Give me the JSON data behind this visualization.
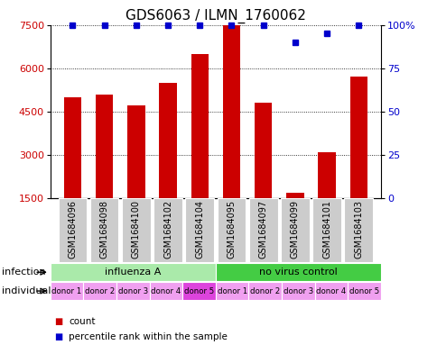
{
  "title": "GDS6063 / ILMN_1760062",
  "samples": [
    "GSM1684096",
    "GSM1684098",
    "GSM1684100",
    "GSM1684102",
    "GSM1684104",
    "GSM1684095",
    "GSM1684097",
    "GSM1684099",
    "GSM1684101",
    "GSM1684103"
  ],
  "counts": [
    5000,
    5100,
    4700,
    5500,
    6500,
    7500,
    4800,
    1700,
    3100,
    5700
  ],
  "percentiles": [
    100,
    100,
    100,
    100,
    100,
    100,
    100,
    90,
    95,
    100
  ],
  "ylim_left": [
    1500,
    7500
  ],
  "yticks_left": [
    1500,
    3000,
    4500,
    6000,
    7500
  ],
  "yticks_right": [
    0,
    25,
    50,
    75,
    100
  ],
  "ytick_labels_right": [
    "0",
    "25",
    "50",
    "75",
    "100%"
  ],
  "bar_color": "#cc0000",
  "dot_color": "#0000cc",
  "infection_groups": [
    {
      "label": "influenza A",
      "start": 0,
      "end": 5,
      "color": "#aaeaaa"
    },
    {
      "label": "no virus control",
      "start": 5,
      "end": 10,
      "color": "#44cc44"
    }
  ],
  "individual_labels": [
    "donor 1",
    "donor 2",
    "donor 3",
    "donor 4",
    "donor 5",
    "donor 1",
    "donor 2",
    "donor 3",
    "donor 4",
    "donor 5"
  ],
  "individual_colors": [
    "#f0a0f0",
    "#f0a0f0",
    "#f0a0f0",
    "#f0a0f0",
    "#dd44dd",
    "#f0a0f0",
    "#f0a0f0",
    "#f0a0f0",
    "#f0a0f0",
    "#f0a0f0"
  ],
  "infection_label": "infection",
  "individual_label": "individual",
  "legend_count_color": "#cc0000",
  "legend_percentile_color": "#0000cc",
  "legend_count_text": "count",
  "legend_percentile_text": "percentile rank within the sample",
  "sample_box_color": "#cccccc",
  "title_fontsize": 11,
  "axis_fontsize": 8,
  "sample_label_fontsize": 7,
  "row_label_fontsize": 8,
  "legend_fontsize": 7.5
}
